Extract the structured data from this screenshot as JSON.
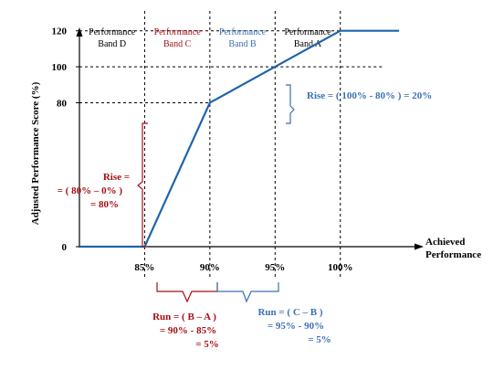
{
  "chart_data": {
    "type": "line",
    "title": "",
    "ylabel": "Adjusted  Performance Score (%)",
    "xlabel_lines": [
      "Achieved",
      "Performance"
    ],
    "x_ticks": [
      "85%",
      "90%",
      "95%",
      "100%"
    ],
    "y_ticks": [
      "0",
      "80",
      "100",
      "120"
    ],
    "xlim": [
      80,
      104.5
    ],
    "ylim": [
      0,
      130
    ],
    "series": [
      {
        "x": [
          80,
          85,
          90,
          95,
          100,
          104.5
        ],
        "y": [
          0,
          0,
          80,
          100,
          120,
          120
        ],
        "color": "#1f64ab"
      }
    ],
    "bands": [
      {
        "lines": [
          "Performance",
          "Band D"
        ],
        "color": "#000000",
        "x_start": 80,
        "x_end": 85
      },
      {
        "lines": [
          "Performance",
          "Band C"
        ],
        "color": "#a50f15",
        "x_start": 85,
        "x_end": 90
      },
      {
        "lines": [
          "Performance",
          "Band B"
        ],
        "color": "#3a70b4",
        "x_start": 90,
        "x_end": 95
      },
      {
        "lines": [
          "Performance",
          "Band A"
        ],
        "color": "#000000",
        "x_start": 95,
        "x_end": 100
      }
    ],
    "annotations": {
      "rise_band_c": {
        "lines": [
          "Rise =",
          "= ( 80% – 0% )",
          "= 80%"
        ],
        "color": "#a50f15"
      },
      "rise_band_b": {
        "lines": [
          "Rise = ( 100% - 80% ) = 20%"
        ],
        "color": "#3a70b4"
      },
      "run_band_c": {
        "lines": [
          "Run = ( B – A )",
          "= 90% - 85%",
          "= 5%"
        ],
        "color": "#a50f15"
      },
      "run_band_b": {
        "lines": [
          "Run = ( C – B )",
          "= 95% - 90%",
          "= 5%"
        ],
        "color": "#3a70b4"
      }
    },
    "grid": "dashed guide lines at band boundaries and score levels"
  }
}
